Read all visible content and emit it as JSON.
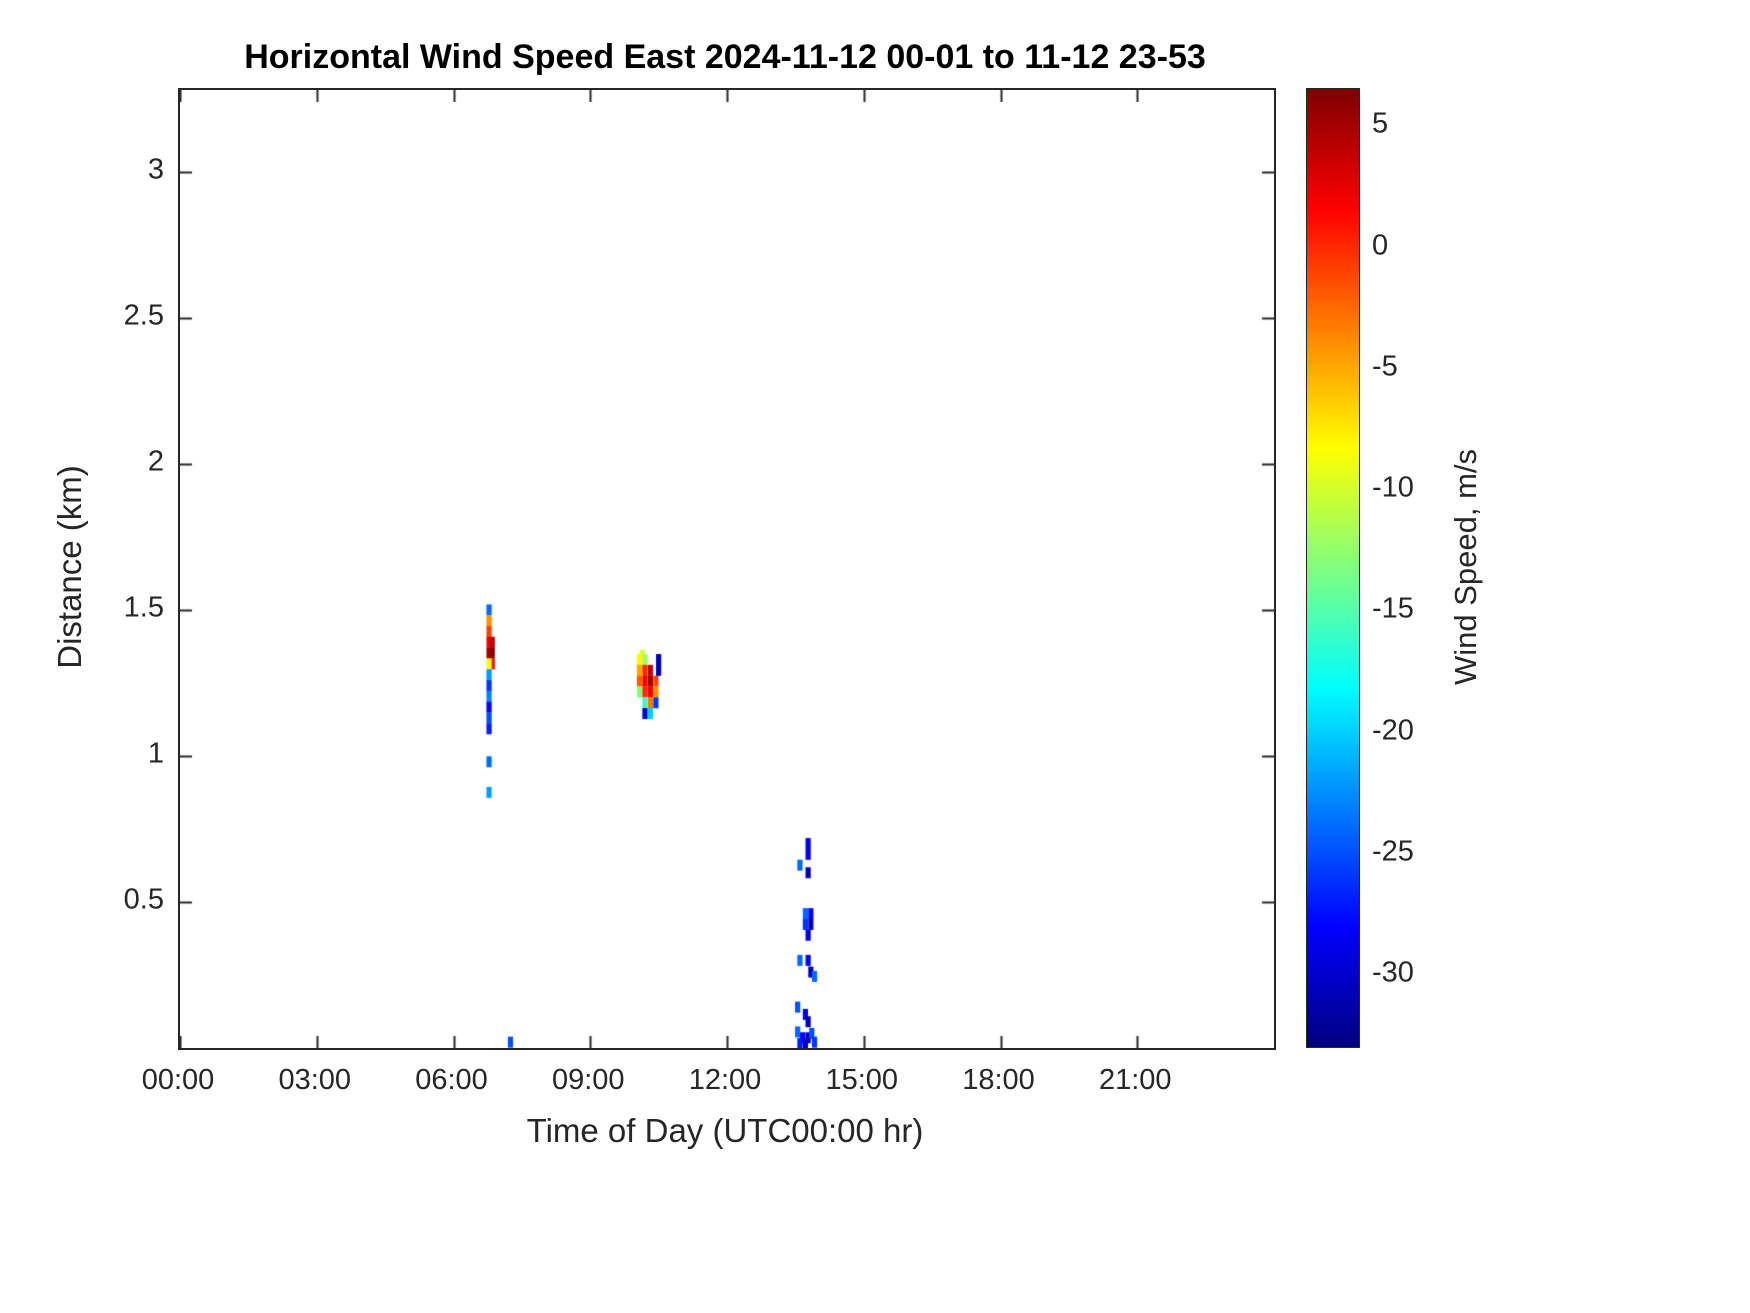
{
  "chart_data": {
    "type": "heatmap",
    "title": "Horizontal Wind Speed East 2024-11-12 00-01 to 11-12 23-53",
    "xlabel": "Time of Day (UTC00:00 hr)",
    "ylabel": "Distance (km)",
    "x_range_hours": [
      0,
      24
    ],
    "y_range_km": [
      0,
      3.28
    ],
    "x_tick_values": [
      0,
      3,
      6,
      9,
      12,
      15,
      18,
      21
    ],
    "x_tick_labels": [
      "00:00",
      "03:00",
      "06:00",
      "09:00",
      "12:00",
      "15:00",
      "18:00",
      "21:00"
    ],
    "y_tick_values": [
      0.5,
      1,
      1.5,
      2,
      2.5,
      3
    ],
    "y_tick_labels": [
      "0.5",
      "1",
      "1.5",
      "2",
      "2.5",
      "3"
    ],
    "grid": false,
    "background": "#ffffff",
    "axis_color": "#262626",
    "colorbar": {
      "label": "Wind Speed, m/s",
      "colormap": "jet",
      "min": -33,
      "max": 6.5,
      "tick_values": [
        5,
        0,
        -5,
        -10,
        -15,
        -20,
        -25,
        -30
      ],
      "tick_labels": [
        "5",
        "0",
        "-5",
        "-10",
        "-15",
        "-20",
        "-25",
        "-30"
      ]
    },
    "cells_format": [
      "time_hours",
      "distance_km",
      "wind_speed_ms"
    ],
    "cells": [
      [
        6.78,
        1.5,
        -24
      ],
      [
        6.78,
        1.463,
        -4
      ],
      [
        6.78,
        1.426,
        -1
      ],
      [
        6.78,
        1.389,
        2
      ],
      [
        6.78,
        1.352,
        5
      ],
      [
        6.85,
        1.389,
        4
      ],
      [
        6.85,
        1.352,
        6
      ],
      [
        6.85,
        1.315,
        1
      ],
      [
        6.78,
        1.315,
        -9
      ],
      [
        6.78,
        1.278,
        -22
      ],
      [
        6.78,
        1.241,
        -26
      ],
      [
        6.78,
        1.204,
        -23
      ],
      [
        6.78,
        1.167,
        -28
      ],
      [
        6.78,
        1.13,
        -25
      ],
      [
        6.78,
        1.093,
        -27
      ],
      [
        6.78,
        0.98,
        -24
      ],
      [
        6.78,
        0.875,
        -22
      ],
      [
        7.25,
        0.02,
        -25
      ],
      [
        10.14,
        1.345,
        -10
      ],
      [
        10.08,
        1.33,
        -8
      ],
      [
        10.08,
        1.293,
        -5
      ],
      [
        10.08,
        1.256,
        -2
      ],
      [
        10.08,
        1.219,
        -13
      ],
      [
        10.2,
        1.33,
        -12
      ],
      [
        10.2,
        1.293,
        0
      ],
      [
        10.2,
        1.256,
        2
      ],
      [
        10.2,
        1.219,
        0
      ],
      [
        10.2,
        1.182,
        -16
      ],
      [
        10.32,
        1.293,
        4
      ],
      [
        10.32,
        1.256,
        5
      ],
      [
        10.32,
        1.219,
        2
      ],
      [
        10.32,
        1.182,
        -3
      ],
      [
        10.32,
        1.145,
        -20
      ],
      [
        10.44,
        1.256,
        -1
      ],
      [
        10.44,
        1.219,
        -4
      ],
      [
        10.44,
        1.182,
        -26
      ],
      [
        10.2,
        1.145,
        -30
      ],
      [
        10.5,
        1.33,
        -31
      ],
      [
        10.5,
        1.293,
        -31
      ],
      [
        13.78,
        0.7,
        -29
      ],
      [
        13.78,
        0.663,
        -29
      ],
      [
        13.6,
        0.626,
        -24
      ],
      [
        13.78,
        0.6,
        -31
      ],
      [
        13.72,
        0.46,
        -24
      ],
      [
        13.84,
        0.46,
        -28
      ],
      [
        13.72,
        0.423,
        -26
      ],
      [
        13.84,
        0.423,
        -31
      ],
      [
        13.78,
        0.386,
        -29
      ],
      [
        13.6,
        0.3,
        -24
      ],
      [
        13.78,
        0.3,
        -28
      ],
      [
        13.84,
        0.26,
        -31
      ],
      [
        13.92,
        0.245,
        -24
      ],
      [
        13.55,
        0.14,
        -25
      ],
      [
        13.72,
        0.115,
        -29
      ],
      [
        13.78,
        0.09,
        -31
      ],
      [
        13.55,
        0.055,
        -24
      ],
      [
        13.66,
        0.035,
        -28
      ],
      [
        13.78,
        0.035,
        -31
      ],
      [
        13.86,
        0.05,
        -25
      ],
      [
        13.92,
        0.02,
        -26
      ],
      [
        13.6,
        0.015,
        -27
      ],
      [
        13.72,
        0.015,
        -30
      ]
    ]
  }
}
